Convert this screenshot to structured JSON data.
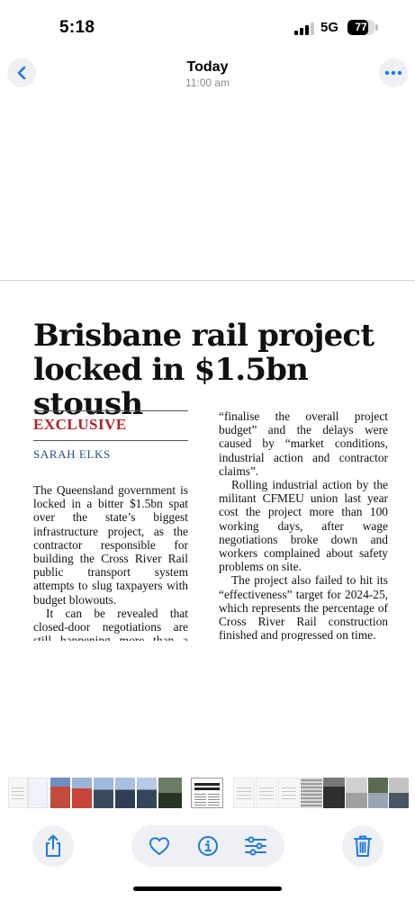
{
  "status_bar": {
    "time": "5:18",
    "network": "5G",
    "battery": "77",
    "battery_level": 0.77
  },
  "nav": {
    "title": "Today",
    "subtitle": "11:00 am",
    "back_icon": "chevron-left-icon",
    "more_icon": "ellipsis-icon"
  },
  "article": {
    "headline_line1": "Brisbane rail project",
    "headline_line2": "locked in $1.5bn stoush",
    "tag": "EXCLUSIVE",
    "byline": "SARAH ELKS",
    "left_paragraphs": [
      "The Queensland government is locked in a bitter $1.5bn spat over the state’s biggest infrastructure project, as the contractor responsible for building the Cross River Rail public transport system attempts to slug taxpayers with budget blowouts.",
      "It can be revealed that closed-door negotiations are still happening more than a year after contractor CPB raised a contrac-"
    ],
    "right_paragraphs": [
      "“finalise the overall project budget” and the delays were caused by “market conditions, industrial action and contractor claims”.",
      "Rolling industrial action by the militant CFMEU union last year cost the project more than 100 working days, after wage negotiations broke down and workers complained about safety problems on site.",
      "The project also failed to hit its “effectiveness” target for 2024-25, which represents the percentage of Cross River Rail construction finished and progressed on time."
    ]
  },
  "toolbar": {
    "share_icon": "share-icon",
    "favorite_icon": "heart-icon",
    "info_icon": "info-icon",
    "adjust_icon": "sliders-icon",
    "delete_icon": "trash-icon",
    "accent": "#1f7ae0"
  }
}
